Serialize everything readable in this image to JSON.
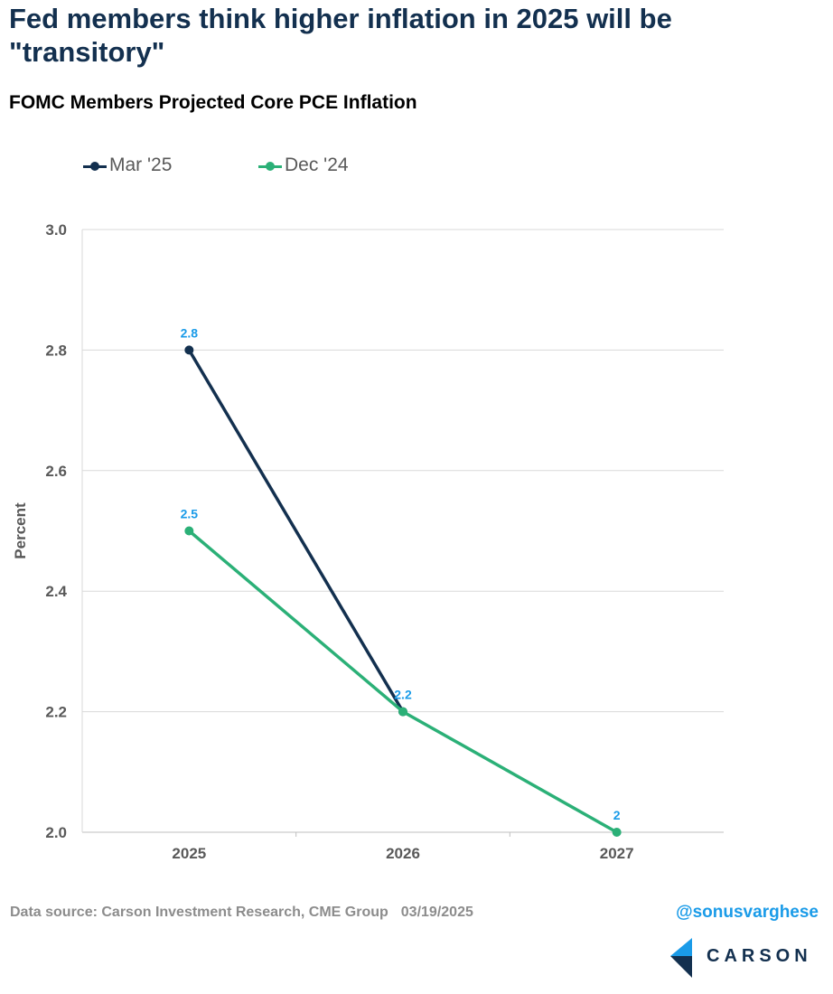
{
  "header": {
    "title": "Fed members think higher inflation in 2025 will be \"transitory\"",
    "subtitle": "FOMC Members Projected Core PCE Inflation"
  },
  "colors": {
    "title": "#13304f",
    "mar25": "#13304f",
    "dec24": "#2bb077",
    "data_label": "#1a9be8",
    "gridline": "#d9d9d9",
    "axis_text": "#595959"
  },
  "chart_data": {
    "type": "line",
    "title": "FOMC Members Projected Core PCE Inflation",
    "xlabel": "",
    "ylabel": "Percent",
    "categories": [
      "2025",
      "2026",
      "2027"
    ],
    "ylim": [
      2.0,
      3.0
    ],
    "yticks": [
      "3.0",
      "2.8",
      "2.6",
      "2.4",
      "2.2",
      "2.0"
    ],
    "grid": true,
    "legend_position": "top-left",
    "series": [
      {
        "name": "Mar '25",
        "values": [
          2.8,
          2.2,
          null
        ],
        "labels": [
          "2.8",
          "",
          ""
        ]
      },
      {
        "name": "Dec '24",
        "values": [
          2.5,
          2.2,
          2.0
        ],
        "labels": [
          "2.5",
          "2.2",
          "2"
        ]
      }
    ]
  },
  "footer": {
    "source": "Data source: Carson Investment Research, CME Group",
    "date": "03/19/2025",
    "handle": "@sonusvarghese",
    "logo_text": "CARSON"
  }
}
